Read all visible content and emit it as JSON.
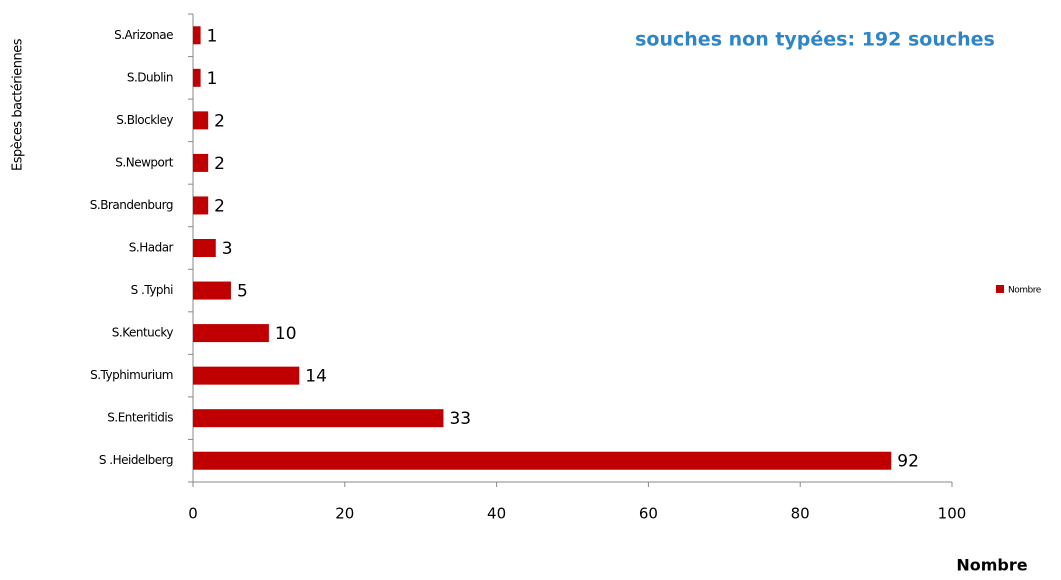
{
  "chart_data": {
    "type": "bar",
    "orientation": "horizontal",
    "annotation": "souches  non typées: 192 souches",
    "x_label": "Nombre",
    "y_label": "Espèces bactériennes",
    "categories": [
      "S.Arizonae",
      "S.Dublin",
      "S.Blockley",
      "S.Newport",
      "S.Brandenburg",
      "S.Hadar",
      "S .Typhi",
      "S.Kentucky",
      "S.Typhimurium",
      "S.Enteritidis",
      "S .Heidelberg"
    ],
    "series": [
      {
        "name": "Nombre",
        "color": "#c00000",
        "values": [
          1,
          1,
          2,
          2,
          2,
          3,
          5,
          10,
          14,
          33,
          92
        ]
      }
    ],
    "xlim": [
      0,
      100
    ],
    "xticks": [
      0,
      20,
      40,
      60,
      80,
      100
    ],
    "legend": "right"
  }
}
